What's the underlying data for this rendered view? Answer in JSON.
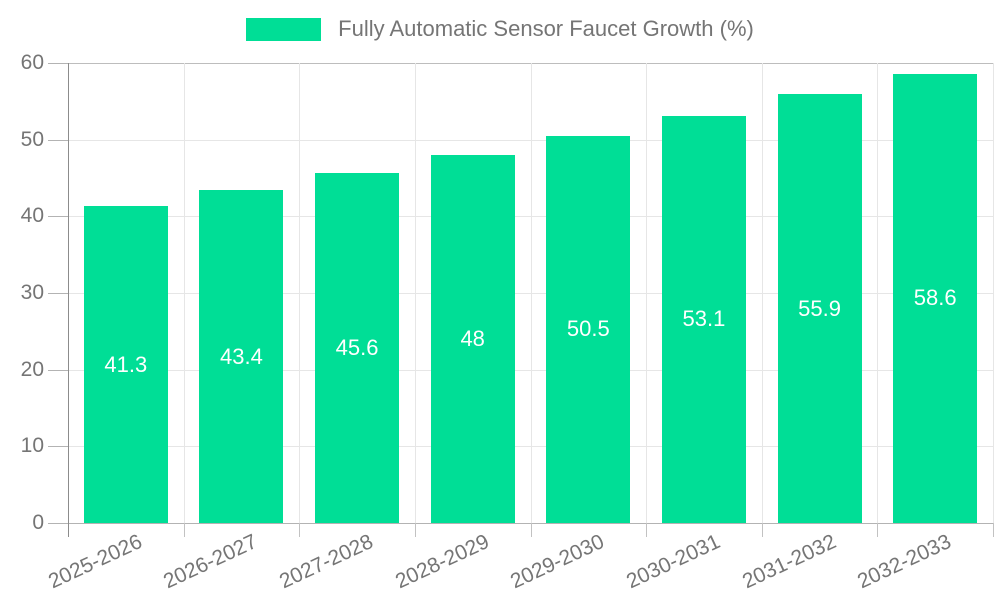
{
  "chart_data": {
    "type": "bar",
    "title": "",
    "legend": {
      "label": "Fully Automatic Sensor Faucet Growth (%)",
      "position": "top"
    },
    "categories": [
      "2025-2026",
      "2026-2027",
      "2027-2028",
      "2028-2029",
      "2029-2030",
      "2030-2031",
      "2031-2032",
      "2032-2033"
    ],
    "series": [
      {
        "name": "Fully Automatic Sensor Faucet Growth (%)",
        "values": [
          41.3,
          43.4,
          45.6,
          48,
          50.5,
          53.1,
          55.9,
          58.6
        ]
      }
    ],
    "value_labels": [
      "41.3",
      "43.4",
      "45.6",
      "48",
      "50.5",
      "53.1",
      "55.9",
      "58.6"
    ],
    "xlabel": "",
    "ylabel": "",
    "ylim": [
      0,
      60
    ],
    "yticks": [
      0,
      10,
      20,
      30,
      40,
      50,
      60
    ],
    "grid": true,
    "value_label_position": "bar-center",
    "colors": {
      "bar": "#00DE96",
      "axis_text": "#757575",
      "value_text": "#ffffff",
      "gridline": "#e6e6e6",
      "boundary_line": "#bdbdbd",
      "axis_line": "#b3b3b3",
      "y_axis_line": "#8c8c8c",
      "tick_line": "#c2c2c2",
      "background": "#ffffff"
    }
  }
}
